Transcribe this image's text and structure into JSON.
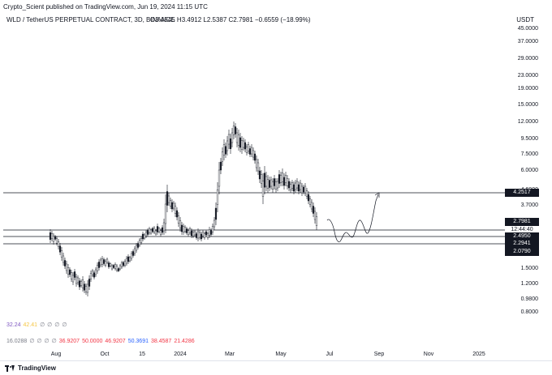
{
  "header": {
    "published": "Crypto_Scient published on TradingView.com, Jun 19, 2024 11:15 UTC",
    "symbol": "WLD / TetherUS PERPETUAL CONTRACT, 3D, BINANCE",
    "ohlc": "O3.4545  H3.4912  L2.5387  C2.7981  −0.6559 (−18.99%)",
    "currency": "USDT"
  },
  "price_axis": [
    "45.0000",
    "37.0000",
    "29.0000",
    "23.0000",
    "19.0000",
    "15.0000",
    "12.0000",
    "9.5000",
    "7.5000",
    "6.0000",
    "4.6000",
    "3.7000",
    "1.5000",
    "1.2000",
    "0.9800",
    "0.8000"
  ],
  "price_tags": {
    "level1": "4.2517",
    "current": "2.7981",
    "countdown": "12:44:40",
    "level2": "2.4950",
    "level3": "2.2941",
    "level4": "2.0790"
  },
  "time_axis": [
    "Aug",
    "Oct",
    "15",
    "2024",
    "Mar",
    "May",
    "Jul",
    "Sep",
    "Nov",
    "2025"
  ],
  "indicator_rows": {
    "row1": [
      "32.24",
      "42.41",
      "∅",
      "∅",
      "∅",
      "∅"
    ],
    "row2": [
      "16.0288",
      "∅",
      "∅",
      "∅",
      "∅",
      "36.9207",
      "50.0000",
      "46.9207",
      "50.3691",
      "38.4587",
      "21.4286"
    ]
  },
  "indicator_colors": {
    "row1": [
      "#7e57c2",
      "#f5c542",
      "#787b86",
      "#787b86",
      "#787b86",
      "#787b86"
    ],
    "row2": [
      "#787b86",
      "#787b86",
      "#787b86",
      "#787b86",
      "#787b86",
      "#f23645",
      "#f23645",
      "#f23645",
      "#2962ff",
      "#f23645",
      "#f23645"
    ]
  },
  "footer": {
    "brand": "TradingView"
  },
  "colors": {
    "candle": "#131722",
    "lines": "#131722",
    "forecast": "#131722"
  }
}
